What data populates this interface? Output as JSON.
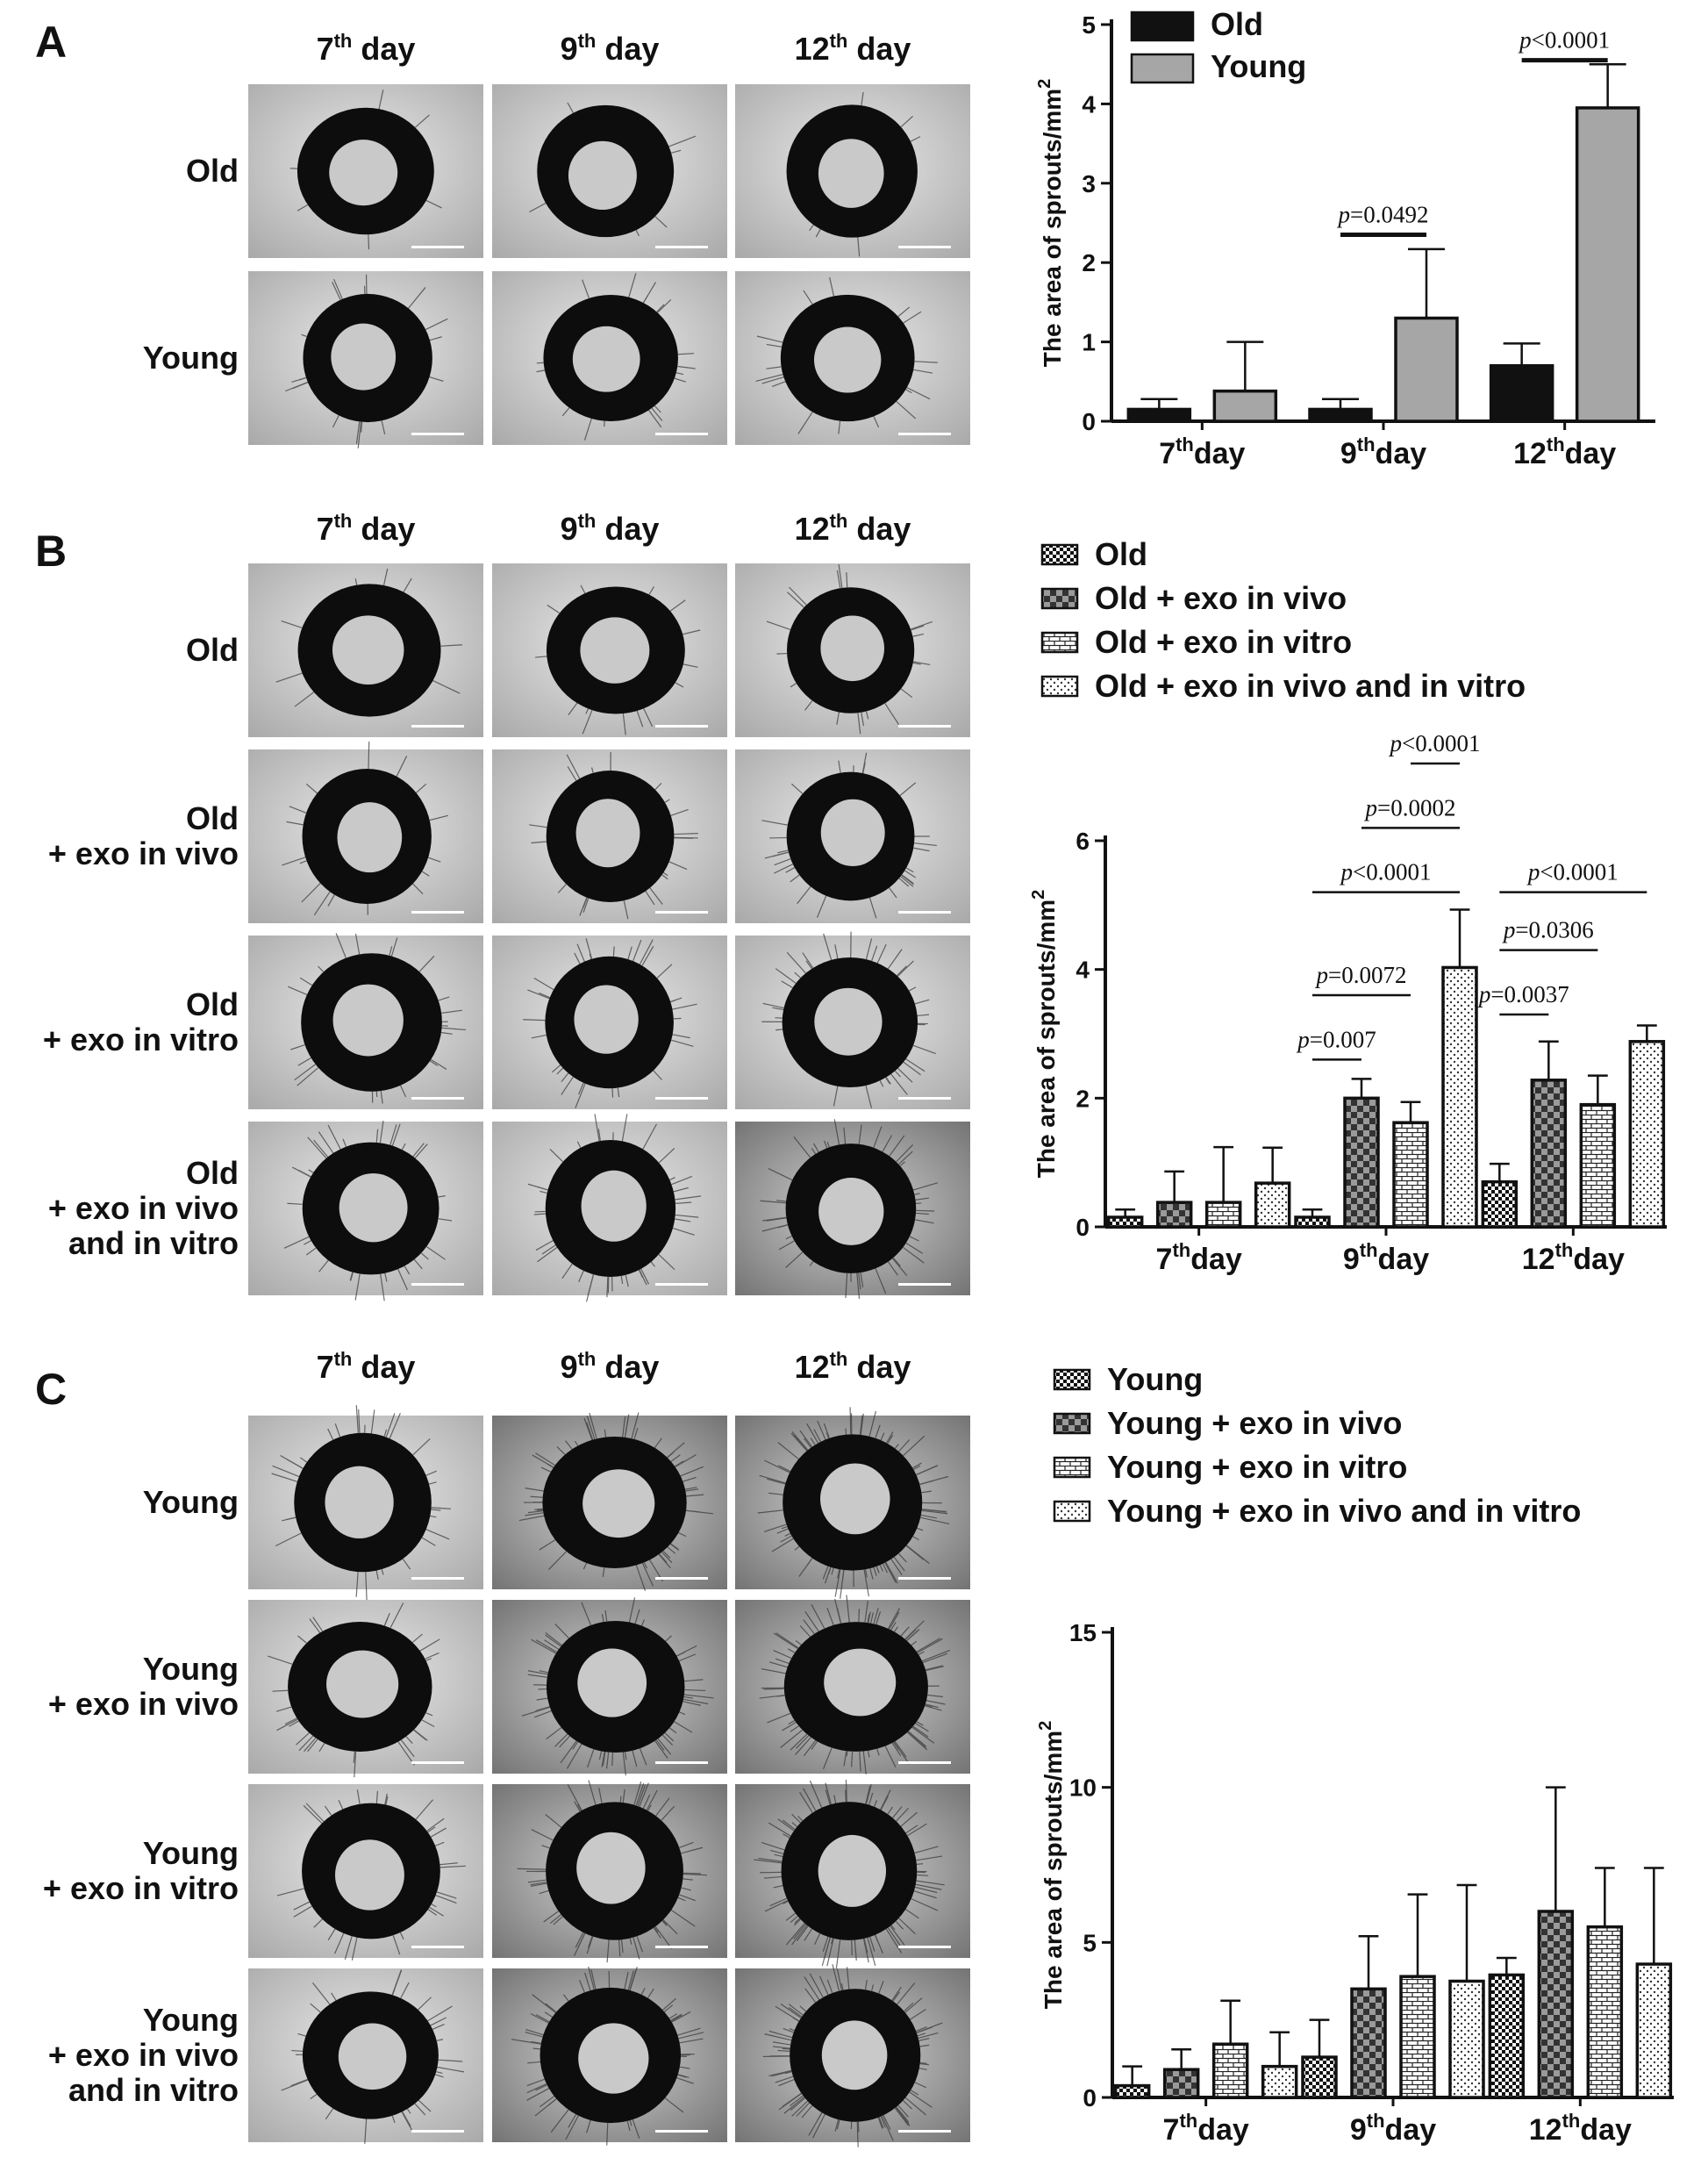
{
  "figure": {
    "colors": {
      "ink": "#111111",
      "grey_bar": "#a6a6a6",
      "photo_bg": "#d9d9d9",
      "photo_dark": "#0d0d0d"
    },
    "panels": [
      {
        "letter": "A",
        "columns": [
          "7",
          "9",
          "12"
        ],
        "column_suffix": "th",
        "column_word": "day",
        "rows": [
          [
            "Old"
          ],
          [
            "Young"
          ]
        ],
        "chart_data": {
          "type": "bar",
          "categories": [
            "7",
            "9",
            "12"
          ],
          "category_suffix": "th",
          "category_word": "day",
          "ylabel": "The area of sprouts/mm",
          "ylabel_sup": "2",
          "ylim": [
            0,
            5
          ],
          "yticks": [
            0,
            1,
            2,
            3,
            4,
            5
          ],
          "legend_position": "top-left",
          "series": [
            {
              "name": "Old",
              "pattern": "solid-black",
              "values": [
                0.15,
                0.15,
                0.7
              ],
              "err": [
                0.13,
                0.13,
                0.28
              ]
            },
            {
              "name": "Young",
              "pattern": "solid-grey",
              "values": [
                0.38,
                1.3,
                3.95
              ],
              "err": [
                0.62,
                0.87,
                0.55
              ]
            }
          ],
          "annotations": [
            {
              "p_prefix": "p",
              "text": "=0.0492",
              "category_index": 1,
              "from_series": 0,
              "to_series": 1,
              "y": 2.35
            },
            {
              "p_prefix": "p",
              "text": "<0.0001",
              "category_index": 2,
              "from_series": 0,
              "to_series": 1,
              "y": 4.55
            }
          ]
        }
      },
      {
        "letter": "B",
        "columns": [
          "7",
          "9",
          "12"
        ],
        "column_suffix": "th",
        "column_word": "day",
        "rows": [
          [
            "Old"
          ],
          [
            "Old",
            "+ exo in vivo"
          ],
          [
            "Old",
            "+ exo in vitro"
          ],
          [
            "Old",
            "+ exo in vivo",
            "and in vitro"
          ]
        ],
        "chart_data": {
          "type": "bar",
          "categories": [
            "7",
            "9",
            "12"
          ],
          "category_suffix": "th",
          "category_word": "day",
          "ylabel": "The area of sprouts/mm",
          "ylabel_sup": "2",
          "ylim": [
            0,
            6
          ],
          "yticks": [
            0,
            2,
            4,
            6
          ],
          "legend_position": "top",
          "series": [
            {
              "name": "Old",
              "pattern": "check-fine",
              "values": [
                0.15,
                0.15,
                0.7
              ],
              "err": [
                0.12,
                0.12,
                0.28
              ]
            },
            {
              "name": "Old + exo in vivo",
              "pattern": "check-coarse",
              "values": [
                0.38,
                2.0,
                2.28
              ],
              "err": [
                0.48,
                0.3,
                0.6
              ]
            },
            {
              "name": "Old + exo in vitro",
              "pattern": "brick",
              "values": [
                0.38,
                1.62,
                1.9
              ],
              "err": [
                0.86,
                0.32,
                0.45
              ]
            },
            {
              "name": "Old + exo in vivo and in vitro",
              "pattern": "dots",
              "values": [
                0.68,
                4.03,
                2.88
              ],
              "err": [
                0.55,
                0.9,
                0.25
              ]
            }
          ],
          "annotations": [
            {
              "p_prefix": "p",
              "text": "=0.007",
              "category_index": 1,
              "from_series": 0,
              "to_series": 1,
              "y": 2.6
            },
            {
              "p_prefix": "p",
              "text": "=0.0072",
              "category_index": 1,
              "from_series": 0,
              "to_series": 2,
              "y": 3.6
            },
            {
              "p_prefix": "p",
              "text": "<0.0001",
              "category_index": 1,
              "from_series": 0,
              "to_series": 3,
              "y": 5.2
            },
            {
              "p_prefix": "p",
              "text": "=0.0002",
              "category_index": 1,
              "from_series": 1,
              "to_series": 3,
              "y": 6.2
            },
            {
              "p_prefix": "p",
              "text": "<0.0001",
              "category_index": 1,
              "from_series": 2,
              "to_series": 3,
              "y": 7.2
            },
            {
              "p_prefix": "p",
              "text": "=0.0037",
              "category_index": 2,
              "from_series": 0,
              "to_series": 1,
              "y": 3.3
            },
            {
              "p_prefix": "p",
              "text": "=0.0306",
              "category_index": 2,
              "from_series": 0,
              "to_series": 2,
              "y": 4.3
            },
            {
              "p_prefix": "p",
              "text": "<0.0001",
              "category_index": 2,
              "from_series": 0,
              "to_series": 3,
              "y": 5.2
            }
          ]
        }
      },
      {
        "letter": "C",
        "columns": [
          "7",
          "9",
          "12"
        ],
        "column_suffix": "th",
        "column_word": "day",
        "rows": [
          [
            "Young"
          ],
          [
            "Young",
            "+ exo in vivo"
          ],
          [
            "Young",
            "+ exo in vitro"
          ],
          [
            "Young",
            "+ exo in vivo",
            "and in vitro"
          ]
        ],
        "chart_data": {
          "type": "bar",
          "categories": [
            "7",
            "9",
            "12"
          ],
          "category_suffix": "th",
          "category_word": "day",
          "ylabel": "The area of sprouts/mm",
          "ylabel_sup": "2",
          "ylim": [
            0,
            15
          ],
          "yticks": [
            0,
            5,
            10,
            15
          ],
          "legend_position": "top",
          "series": [
            {
              "name": "Young",
              "pattern": "check-fine",
              "values": [
                0.38,
                1.3,
                3.95
              ],
              "err": [
                0.62,
                1.2,
                0.55
              ]
            },
            {
              "name": "Young + exo in vivo",
              "pattern": "check-coarse",
              "values": [
                0.9,
                3.5,
                6.0
              ],
              "err": [
                0.65,
                1.7,
                4.0
              ]
            },
            {
              "name": "Young + exo in vitro",
              "pattern": "brick",
              "values": [
                1.72,
                3.9,
                5.5
              ],
              "err": [
                1.4,
                2.65,
                1.9
              ]
            },
            {
              "name": "Young + exo in vivo and in vitro",
              "pattern": "dots",
              "values": [
                1.0,
                3.75,
                4.3
              ],
              "err": [
                1.1,
                3.1,
                3.1
              ]
            }
          ],
          "annotations": []
        }
      }
    ]
  }
}
